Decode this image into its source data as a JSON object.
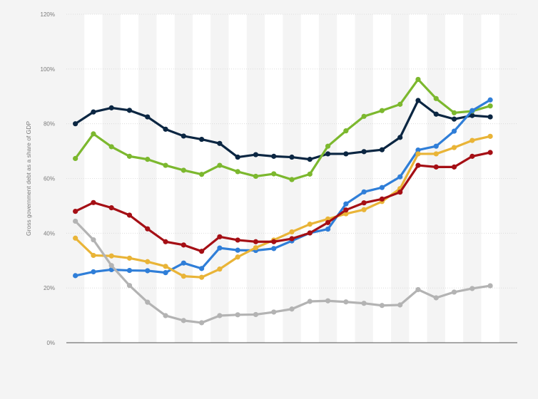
{
  "chart_data": {
    "type": "line",
    "title": "",
    "xlabel": "",
    "ylabel": "Gross government debt as a share of GDP",
    "ylim": [
      0,
      120
    ],
    "yticks": [
      0,
      20,
      40,
      60,
      80,
      100,
      120
    ],
    "ytick_labels": [
      "0%",
      "20%",
      "40%",
      "60%",
      "80%",
      "100%",
      "120%"
    ],
    "grid": true,
    "legend": "none",
    "x": [
      1,
      2,
      3,
      4,
      5,
      6,
      7,
      8,
      9,
      10,
      11,
      12,
      13,
      14,
      15,
      16,
      17,
      18,
      19,
      20,
      21,
      22,
      23,
      24,
      25
    ],
    "series": [
      {
        "color": "#0b2642",
        "values": [
          80,
          84.3,
          85.8,
          84.9,
          82.5,
          78,
          75.5,
          74.3,
          72.8,
          67.8,
          68.7,
          68.1,
          67.8,
          67,
          69,
          69,
          69.8,
          70.5,
          75,
          88.5,
          83.5,
          81.7,
          83,
          82.5,
          null
        ]
      },
      {
        "color": "#7cb82e",
        "values": [
          67.3,
          76.3,
          71.6,
          68.1,
          67,
          64.8,
          63,
          61.5,
          64.8,
          62.5,
          60.8,
          61.7,
          59.6,
          61.6,
          71.8,
          77.4,
          82.7,
          84.8,
          87.1,
          96.2,
          89.2,
          84,
          84.6,
          86.5,
          null
        ]
      },
      {
        "color": "#2f7ed8",
        "values": [
          24.5,
          25.9,
          26.7,
          26.4,
          26.3,
          25.6,
          29.1,
          27.1,
          34.6,
          33.8,
          33.7,
          34.4,
          37.2,
          40.1,
          41.5,
          50.7,
          55.1,
          56.7,
          60.6,
          70.4,
          71.8,
          77.3,
          84.8,
          88.7,
          null
        ]
      },
      {
        "color": "#e9b437",
        "values": [
          38.2,
          31.9,
          31.7,
          30.9,
          29.6,
          27.9,
          24.3,
          23.9,
          26.9,
          31.3,
          34.7,
          37.5,
          40.5,
          43.3,
          45.2,
          47.1,
          48.6,
          51.6,
          56.3,
          69,
          69,
          71.3,
          73.9,
          75.4,
          null
        ]
      },
      {
        "color": "#a50f15",
        "values": [
          48,
          51.2,
          49.3,
          46.6,
          41.6,
          36.9,
          35.7,
          33.4,
          38.7,
          37.5,
          36.9,
          36.9,
          38,
          40.1,
          43.9,
          48.5,
          51.1,
          52.5,
          55,
          64.8,
          64.2,
          64.2,
          68.1,
          69.5,
          null
        ]
      },
      {
        "color": "#b3b3b3",
        "values": [
          44.4,
          37.6,
          28.2,
          20.9,
          14.8,
          9.9,
          8.1,
          7.3,
          9.9,
          10.2,
          10.3,
          11.2,
          12.3,
          15.1,
          15.3,
          14.9,
          14.4,
          13.6,
          13.8,
          19.4,
          16.4,
          18.5,
          19.8,
          20.8,
          null
        ]
      }
    ]
  }
}
